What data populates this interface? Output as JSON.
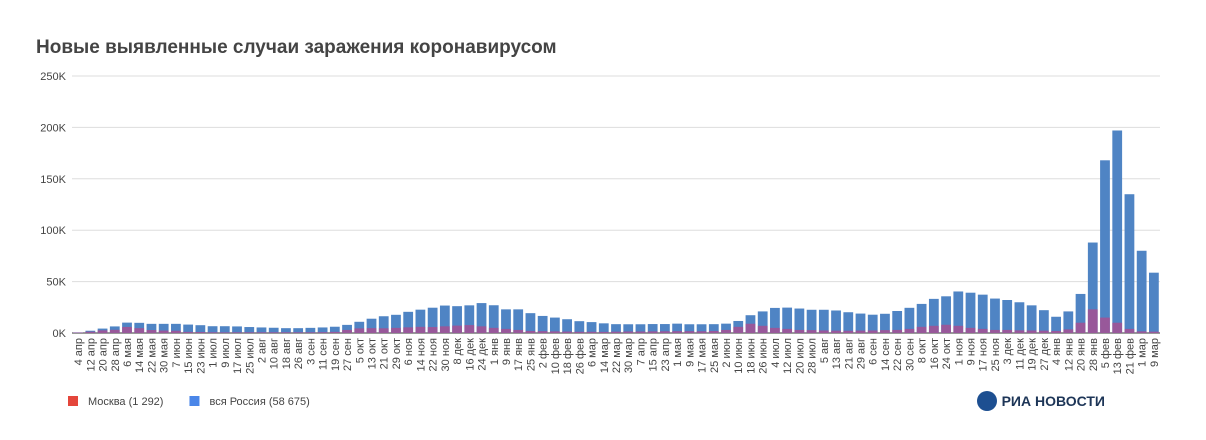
{
  "chart_data": {
    "type": "bar",
    "title": "Новые выявленные случаи заражения коронавирусом",
    "logo": "РИА НОВОСТИ",
    "categories": [
      "4 апр",
      "12 апр",
      "20 апр",
      "28 апр",
      "6 мая",
      "14 мая",
      "22 мая",
      "30 мая",
      "7 июн",
      "15 июн",
      "23 июн",
      "1 июл",
      "9 июл",
      "17 июл",
      "25 июл",
      "2 авг",
      "10 авг",
      "18 авг",
      "26 авг",
      "3 сен",
      "11 сен",
      "19 сен",
      "27 сен",
      "5 окт",
      "13 окт",
      "21 окт",
      "29 окт",
      "6 ноя",
      "14 ноя",
      "22 ноя",
      "30 ноя",
      "8 дек",
      "16 дек",
      "24 дек",
      "1 янв",
      "9 янв",
      "17 янв",
      "25 янв",
      "2 фев",
      "10 фев",
      "18 фев",
      "26 фев",
      "6 мар",
      "14 мар",
      "22 мар",
      "30 мар",
      "7 апр",
      "15 апр",
      "23 апр",
      "1 мая",
      "9 мая",
      "17 мая",
      "25 мая",
      "2 июн",
      "10 июн",
      "18 июн",
      "26 июн",
      "4 июл",
      "12 июл",
      "20 июл",
      "28 июл",
      "5 авг",
      "13 авг",
      "21 авг",
      "29 авг",
      "6 сен",
      "14 сен",
      "22 сен",
      "30 сен",
      "8 окт",
      "16 окт",
      "24 окт",
      "1 ноя",
      "9 ноя",
      "17 ноя",
      "25 ноя",
      "3 дек",
      "11 дек",
      "19 дек",
      "27 дек",
      "4 янв",
      "12 янв",
      "20 янв",
      "28 янв",
      "5 фев",
      "13 фев",
      "21 фев",
      "1 мар",
      "9 мар"
    ],
    "series": [
      {
        "name": "вся Россия (58 675)",
        "color": "#4a86e8",
        "bar_color": "#4f84c4",
        "values": [
          600,
          2200,
          4300,
          6400,
          10100,
          9900,
          8900,
          8900,
          8900,
          8200,
          7600,
          6600,
          6600,
          6400,
          5800,
          5400,
          5100,
          4700,
          4700,
          5000,
          5400,
          6100,
          7900,
          10900,
          13900,
          16300,
          17700,
          20600,
          22700,
          24600,
          26700,
          26100,
          26900,
          29100,
          27000,
          23000,
          23000,
          19300,
          16600,
          15000,
          13400,
          11500,
          10600,
          9400,
          8600,
          8500,
          8500,
          8700,
          8700,
          9100,
          8500,
          8500,
          8600,
          9100,
          11700,
          17300,
          21000,
          24400,
          24700,
          23800,
          22600,
          22600,
          21900,
          20200,
          18900,
          17800,
          18700,
          21400,
          24500,
          28300,
          33200,
          35700,
          40400,
          39200,
          37300,
          33500,
          32100,
          29900,
          26900,
          22200,
          15800,
          21000,
          38000,
          88000,
          168000,
          197000,
          135000,
          80000,
          58675
        ]
      },
      {
        "name": "Москва (1 292)",
        "color": "#e4463b",
        "bar_color": "#b04a8c",
        "values": [
          500,
          1300,
          2600,
          3100,
          5900,
          4700,
          2900,
          2400,
          2200,
          1100,
          1000,
          700,
          600,
          700,
          700,
          700,
          700,
          700,
          700,
          700,
          800,
          1100,
          3000,
          4500,
          4700,
          4600,
          5000,
          5500,
          6000,
          5800,
          6500,
          7200,
          7700,
          6500,
          5000,
          4000,
          3000,
          2000,
          1800,
          1600,
          1400,
          1200,
          1200,
          1100,
          1300,
          1500,
          1500,
          1600,
          1700,
          1800,
          1800,
          1700,
          2000,
          3000,
          6000,
          9000,
          7000,
          5000,
          4000,
          3000,
          2800,
          2500,
          2300,
          2200,
          2400,
          2500,
          2800,
          3000,
          4000,
          6000,
          7000,
          8000,
          7000,
          5000,
          4000,
          3000,
          3000,
          2600,
          2500,
          2300,
          2000,
          3500,
          10000,
          23000,
          15000,
          10000,
          4000,
          1600,
          1292
        ]
      }
    ],
    "ylim": [
      0,
      250000
    ],
    "yticks": [
      {
        "value": 0,
        "label": "0K"
      },
      {
        "value": 50000,
        "label": "50K"
      },
      {
        "value": 100000,
        "label": "100K"
      },
      {
        "value": 150000,
        "label": "150K"
      },
      {
        "value": 200000,
        "label": "200K"
      },
      {
        "value": 250000,
        "label": "250K"
      }
    ],
    "grid": true
  }
}
